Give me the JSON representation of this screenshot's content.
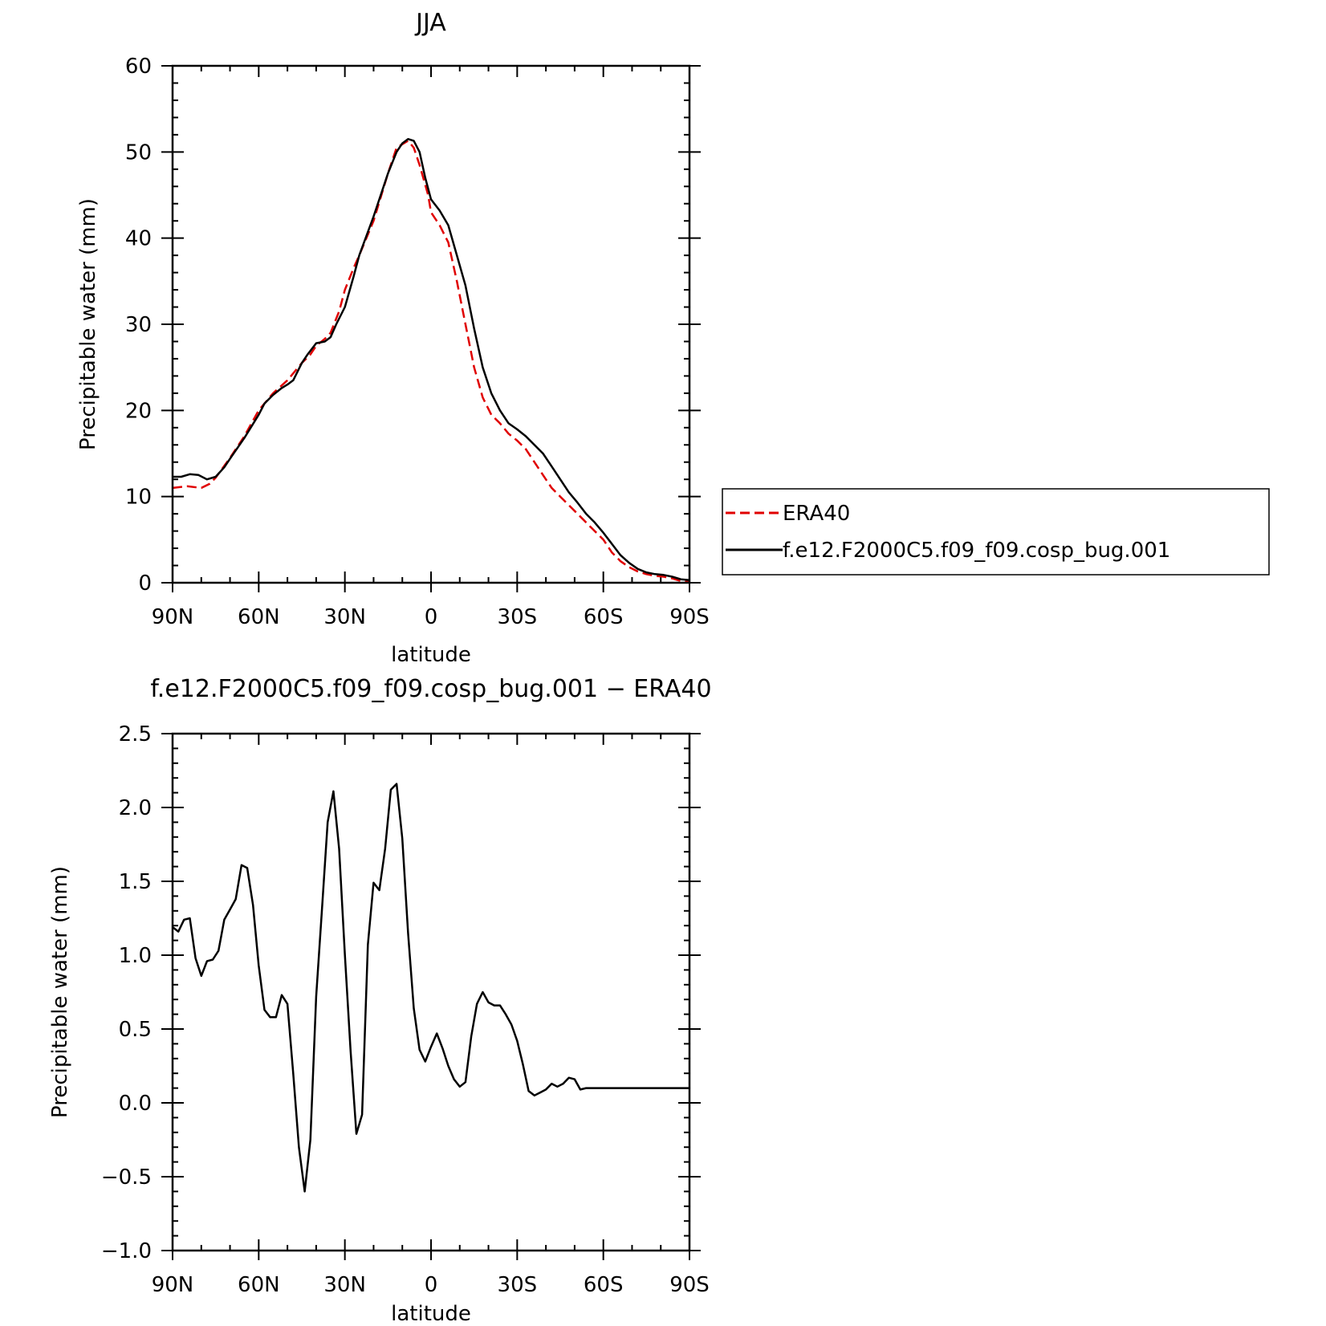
{
  "chart_data": [
    {
      "type": "line",
      "title": "JJA",
      "xlabel": "latitude",
      "ylabel": "Precipitable water (mm)",
      "x_ticks": [
        "90N",
        "60N",
        "30N",
        "0",
        "30S",
        "60S",
        "90S"
      ],
      "x_tick_values": [
        -90,
        -60,
        -30,
        0,
        30,
        60,
        90
      ],
      "xlim": [
        -90,
        90
      ],
      "ylim": [
        0,
        60
      ],
      "y_ticks": [
        "0",
        "10",
        "20",
        "30",
        "40",
        "50",
        "60"
      ],
      "y_tick_values": [
        0,
        10,
        20,
        30,
        40,
        50,
        60
      ],
      "grid": false,
      "legend_position": "right",
      "series": [
        {
          "name": "ERA40",
          "color": "#e00000",
          "dash": true,
          "x": [
            -90,
            -85,
            -80,
            -77,
            -75,
            -70,
            -65,
            -60,
            -55,
            -50,
            -45,
            -42,
            -40,
            -37,
            -35,
            -32,
            -30,
            -27,
            -25,
            -20,
            -15,
            -12,
            -8,
            -6,
            -4,
            -1,
            0,
            3,
            6,
            9,
            12,
            15,
            18,
            21,
            24,
            27,
            30,
            33,
            36,
            39,
            42,
            45,
            48,
            51,
            54,
            57,
            60,
            63,
            66,
            69,
            72,
            75,
            78,
            81,
            84,
            87,
            90
          ],
          "y": [
            11.0,
            11.2,
            11.0,
            11.5,
            12.2,
            14.5,
            17.0,
            20.0,
            22.0,
            23.5,
            25.5,
            26.5,
            27.5,
            28.3,
            29.0,
            31.5,
            34.0,
            36.5,
            38.0,
            42.0,
            47.5,
            50.5,
            51.3,
            50.5,
            48.5,
            45.0,
            43.0,
            41.5,
            39.5,
            35.0,
            30.0,
            25.0,
            21.5,
            19.5,
            18.5,
            17.3,
            16.5,
            15.5,
            14.0,
            12.5,
            11.0,
            10.0,
            9.0,
            8.0,
            7.0,
            6.0,
            5.0,
            3.5,
            2.5,
            1.8,
            1.3,
            1.0,
            0.8,
            0.7,
            0.5,
            0.2,
            0.1
          ]
        },
        {
          "name": "f.e12.F2000C5.f09_f09.cosp_bug.001",
          "color": "#000000",
          "dash": false,
          "x": [
            -90,
            -87,
            -84,
            -81,
            -78,
            -75,
            -72,
            -70,
            -65,
            -60,
            -58,
            -55,
            -52,
            -50,
            -48,
            -45,
            -43,
            -40,
            -37,
            -35,
            -33,
            -30,
            -27,
            -25,
            -20,
            -15,
            -12,
            -10,
            -8,
            -6,
            -4,
            -2,
            0,
            3,
            6,
            9,
            12,
            15,
            18,
            21,
            24,
            27,
            30,
            33,
            36,
            39,
            42,
            45,
            48,
            51,
            54,
            57,
            60,
            63,
            66,
            69,
            72,
            75,
            78,
            81,
            84,
            87,
            90
          ],
          "y": [
            12.3,
            12.3,
            12.6,
            12.5,
            12.0,
            12.3,
            13.4,
            14.4,
            16.8,
            19.5,
            20.8,
            21.8,
            22.6,
            23.0,
            23.5,
            25.5,
            26.5,
            27.8,
            28.0,
            28.5,
            30.0,
            32.0,
            35.5,
            38.0,
            42.5,
            47.5,
            50.0,
            51.0,
            51.5,
            51.3,
            50.0,
            47.0,
            44.5,
            43.2,
            41.5,
            38.0,
            34.5,
            29.5,
            25.0,
            22.0,
            20.0,
            18.5,
            17.8,
            17.0,
            16.0,
            15.0,
            13.5,
            12.0,
            10.5,
            9.3,
            8.0,
            7.0,
            5.8,
            4.5,
            3.2,
            2.3,
            1.6,
            1.2,
            1.0,
            0.9,
            0.7,
            0.4,
            0.3
          ]
        }
      ]
    },
    {
      "type": "line",
      "title": "f.e12.F2000C5.f09_f09.cosp_bug.001 − ERA40",
      "xlabel": "latitude",
      "ylabel": "Precipitable water (mm)",
      "x_ticks": [
        "90N",
        "60N",
        "30N",
        "0",
        "30S",
        "60S",
        "90S"
      ],
      "x_tick_values": [
        -90,
        -60,
        -30,
        0,
        30,
        60,
        90
      ],
      "xlim": [
        -90,
        90
      ],
      "ylim": [
        -1.0,
        2.5
      ],
      "y_ticks": [
        "−1.0",
        "−0.5",
        "0.0",
        "0.5",
        "1.0",
        "1.5",
        "2.0",
        "2.5"
      ],
      "y_tick_values": [
        -1.0,
        -0.5,
        0.0,
        0.5,
        1.0,
        1.5,
        2.0,
        2.5
      ],
      "grid": false,
      "series": [
        {
          "name": "",
          "color": "#000000",
          "dash": false,
          "x": [
            -90,
            -88,
            -86,
            -84,
            -82,
            -80,
            -78,
            -76,
            -74,
            -72,
            -70,
            -68,
            -66,
            -64,
            -62,
            -60,
            -58,
            -56,
            -54,
            -52,
            -50,
            -48,
            -46,
            -44,
            -42,
            -40,
            -38,
            -36,
            -34,
            -32,
            -30,
            -28,
            -26,
            -24,
            -22,
            -20,
            -18,
            -16,
            -14,
            -12,
            -10,
            -8,
            -6,
            -4,
            -2,
            0,
            2,
            4,
            6,
            8,
            10,
            12,
            14,
            16,
            18,
            20,
            22,
            24,
            26,
            28,
            30,
            32,
            34,
            36,
            38,
            40,
            42,
            44,
            46,
            48,
            50,
            52,
            54,
            56,
            58,
            60,
            62,
            64,
            66,
            68,
            70,
            72,
            74,
            76,
            78,
            80,
            82,
            84,
            86,
            88,
            90
          ],
          "y": [
            1.19,
            1.16,
            1.24,
            1.25,
            0.98,
            0.86,
            0.96,
            0.97,
            1.03,
            1.24,
            1.31,
            1.38,
            1.61,
            1.59,
            1.34,
            0.93,
            0.63,
            0.58,
            0.58,
            0.73,
            0.67,
            0.2,
            -0.3,
            -0.6,
            -0.25,
            0.72,
            1.3,
            1.9,
            2.11,
            1.72,
            1.0,
            0.35,
            -0.21,
            -0.08,
            1.07,
            1.49,
            1.44,
            1.72,
            2.12,
            2.16,
            1.79,
            1.15,
            0.64,
            0.36,
            0.28,
            0.38,
            0.47,
            0.37,
            0.25,
            0.16,
            0.11,
            0.14,
            0.45,
            0.67,
            0.75,
            0.68,
            0.66,
            0.66,
            0.6,
            0.53,
            0.42,
            0.26,
            0.08,
            0.05,
            0.07,
            0.09,
            0.13,
            0.11,
            0.13,
            0.17,
            0.16,
            0.09,
            0.1,
            0.1,
            0.1,
            0.1,
            0.1,
            0.1,
            0.1,
            0.1,
            0.1,
            0.1,
            0.1,
            0.1,
            0.1,
            0.1,
            0.1,
            0.1,
            0.1,
            0.1,
            0.1
          ]
        }
      ]
    }
  ]
}
